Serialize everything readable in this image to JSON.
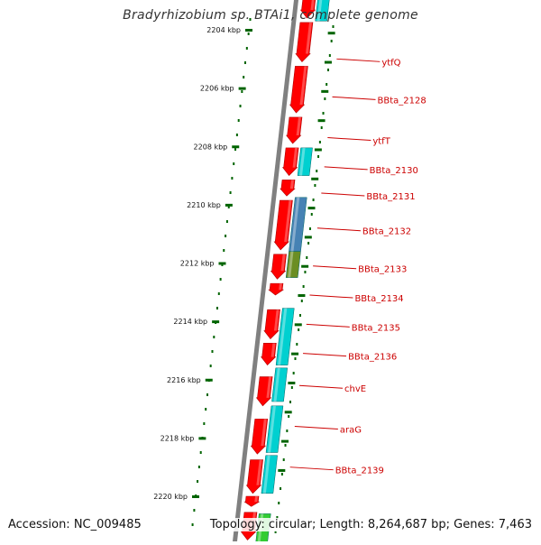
{
  "title": "Bradyrhizobium sp. BTAi1, complete genome",
  "accession": "Accession: NC_009485",
  "topology": "Topology: circular; Length: 8,264,687 bp; Genes: 7,463",
  "colors": {
    "forward_gene": "#ff0000",
    "reverse_gene": "#00d0d0",
    "steelblue_gene": "#4682b4",
    "olive_gene": "#6b8e23",
    "green_gene": "#33cc33",
    "backbone": "#808080",
    "ruler": "#006400",
    "label": "#cc0000"
  },
  "ruler_ticks": [
    {
      "kbp": 2204,
      "label": "2204 kbp"
    },
    {
      "kbp": 2206,
      "label": "2206 kbp"
    },
    {
      "kbp": 2208,
      "label": "2208 kbp"
    },
    {
      "kbp": 2210,
      "label": "2210 kbp"
    },
    {
      "kbp": 2212,
      "label": "2212 kbp"
    },
    {
      "kbp": 2214,
      "label": "2214 kbp"
    },
    {
      "kbp": 2216,
      "label": "2216 kbp"
    },
    {
      "kbp": 2218,
      "label": "2218 kbp"
    },
    {
      "kbp": 2220,
      "label": "2220 kbp"
    }
  ],
  "gene_labels": [
    {
      "name": "ytfQ",
      "kbp": 2205.0
    },
    {
      "name": "BBta_2128",
      "kbp": 2206.3
    },
    {
      "name": "ytfT",
      "kbp": 2207.7
    },
    {
      "name": "BBta_2130",
      "kbp": 2208.7
    },
    {
      "name": "BBta_2131",
      "kbp": 2209.6
    },
    {
      "name": "BBta_2132",
      "kbp": 2210.8
    },
    {
      "name": "BBta_2133",
      "kbp": 2212.1
    },
    {
      "name": "BBta_2134",
      "kbp": 2213.1
    },
    {
      "name": "BBta_2135",
      "kbp": 2214.1
    },
    {
      "name": "BBta_2136",
      "kbp": 2215.1
    },
    {
      "name": "chvE",
      "kbp": 2216.2
    },
    {
      "name": "araG",
      "kbp": 2217.6
    },
    {
      "name": "BBta_2139",
      "kbp": 2219.0
    }
  ],
  "forward_genes": [
    {
      "start": 2202.8,
      "end": 2203.6
    },
    {
      "start": 2203.75,
      "end": 2205.1
    },
    {
      "start": 2205.25,
      "end": 2206.85
    },
    {
      "start": 2207.0,
      "end": 2207.9
    },
    {
      "start": 2208.05,
      "end": 2209.0
    },
    {
      "start": 2209.15,
      "end": 2209.7
    },
    {
      "start": 2209.85,
      "end": 2211.55
    },
    {
      "start": 2211.7,
      "end": 2212.55
    },
    {
      "start": 2212.7,
      "end": 2213.1
    },
    {
      "start": 2213.6,
      "end": 2214.6
    },
    {
      "start": 2214.75,
      "end": 2215.5
    },
    {
      "start": 2215.9,
      "end": 2216.9
    },
    {
      "start": 2217.35,
      "end": 2218.55
    },
    {
      "start": 2218.75,
      "end": 2219.9
    },
    {
      "start": 2220.0,
      "end": 2220.35
    },
    {
      "start": 2220.55,
      "end": 2221.5
    }
  ],
  "reverse_genes": [
    {
      "start": 2202.7,
      "end": 2203.7,
      "color": "reverse_gene"
    },
    {
      "start": 2208.05,
      "end": 2209.0,
      "color": "reverse_gene"
    },
    {
      "start": 2209.75,
      "end": 2211.6,
      "color": "steelblue_gene"
    },
    {
      "start": 2211.6,
      "end": 2212.5,
      "color": "olive_gene"
    },
    {
      "start": 2213.55,
      "end": 2215.5,
      "color": "reverse_gene"
    },
    {
      "start": 2215.6,
      "end": 2216.75,
      "color": "reverse_gene"
    },
    {
      "start": 2216.9,
      "end": 2218.5,
      "color": "reverse_gene"
    },
    {
      "start": 2218.6,
      "end": 2219.9,
      "color": "reverse_gene"
    },
    {
      "start": 2220.6,
      "end": 2221.6,
      "color": "green_gene"
    }
  ]
}
